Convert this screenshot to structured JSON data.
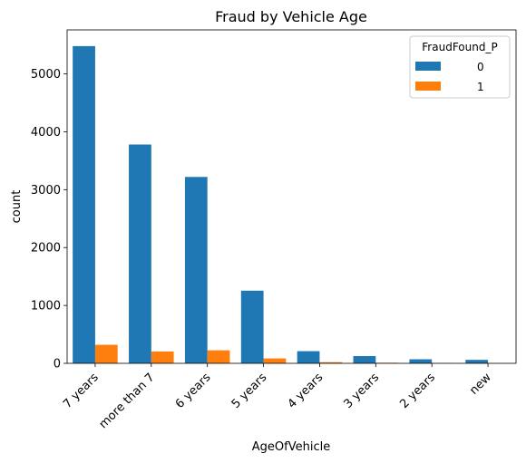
{
  "chart_data": {
    "type": "bar",
    "title": "Fraud by Vehicle Age",
    "xlabel": "AgeOfVehicle",
    "ylabel": "count",
    "categories": [
      "7 years",
      "more than 7",
      "6 years",
      "5 years",
      "4 years",
      "3 years",
      "2 years",
      "new"
    ],
    "series": [
      {
        "name": "0",
        "color": "#1f77b4",
        "values": [
          5480,
          3780,
          3220,
          1255,
          210,
          125,
          70,
          60
        ]
      },
      {
        "name": "1",
        "color": "#ff7f0e",
        "values": [
          320,
          205,
          225,
          85,
          20,
          10,
          5,
          0
        ]
      }
    ],
    "ylim": [
      0,
      5760
    ],
    "yticks": [
      0,
      1000,
      2000,
      3000,
      4000,
      5000
    ],
    "legend": {
      "title": "FraudFound_P",
      "placement": "top-right"
    },
    "grid": false
  }
}
